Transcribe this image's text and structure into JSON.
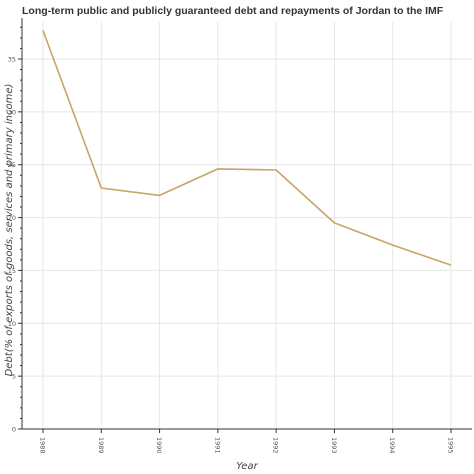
{
  "chart_data": {
    "type": "line",
    "title": "Long-term public and publicly guaranteed debt and repayments of Jordan to the IMF",
    "xlabel": "Year",
    "ylabel": "Debt(% of exports of goods, services and primary income)",
    "categories": [
      "1988",
      "1989",
      "1990",
      "1991",
      "1992",
      "1993",
      "1994",
      "1995"
    ],
    "values": [
      37.7,
      22.8,
      22.1,
      24.6,
      24.5,
      19.5,
      17.4,
      15.5
    ],
    "ylim": [
      0,
      38.5
    ],
    "yticks": [
      0,
      5,
      10,
      15,
      20,
      25,
      30,
      35
    ],
    "grid": true,
    "line_color": "#c8a46a"
  }
}
